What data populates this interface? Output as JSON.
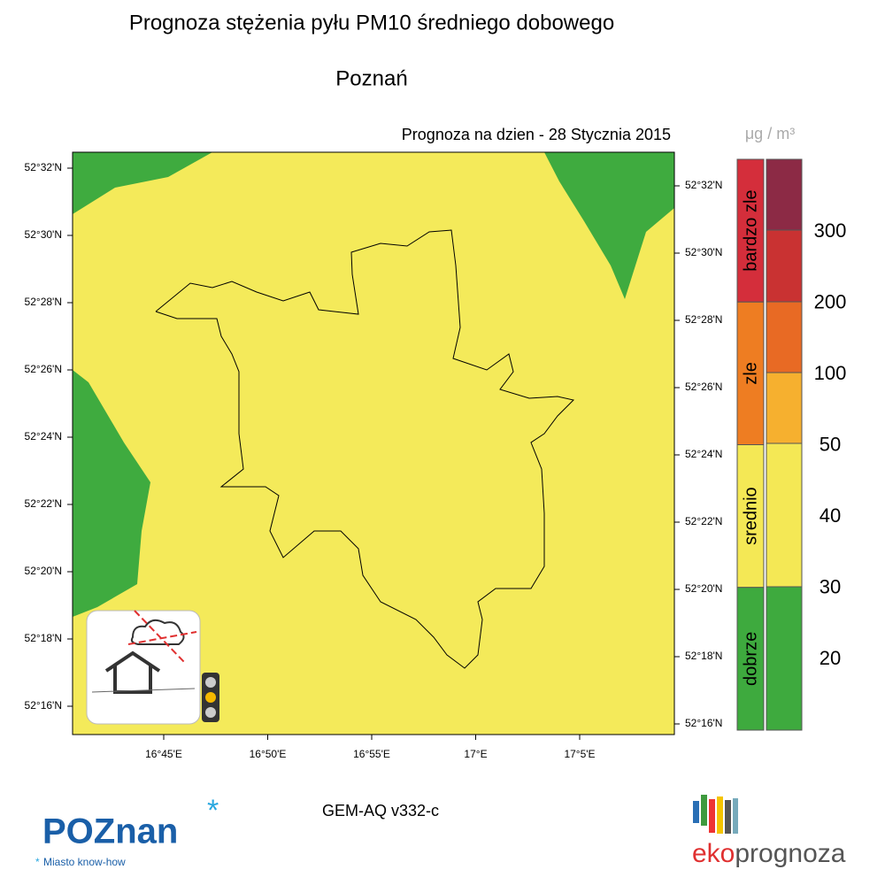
{
  "title": "Prognoza stężenia pyłu PM10 średniego dobowego",
  "subtitle": "Poznań",
  "forecast_date": "Prognoza na dzien -  28 Stycznia 2015",
  "map": {
    "lat_labels_left": [
      "52°32'N",
      "52°30'N",
      "52°28'N",
      "52°26'N",
      "52°24'N",
      "52°22'N",
      "52°20'N",
      "52°18'N",
      "52°16'N"
    ],
    "lat_labels_right": [
      "52°32'N",
      "52°30'N",
      "52°28'N",
      "52°26'N",
      "52°24'N",
      "52°22'N",
      "52°20'N",
      "52°18'N",
      "52°16'N"
    ],
    "lon_labels": [
      "16°45'E",
      "16°50'E",
      "16°55'E",
      "17°E",
      "17°5'E"
    ]
  },
  "legend": {
    "unit": "μg / m³",
    "categories": [
      {
        "name": "bardzo zle",
        "color": "#d42e3b"
      },
      {
        "name": "zle",
        "color": "#ee7d22"
      },
      {
        "name": "srednio",
        "color": "#f4e855"
      },
      {
        "name": "dobrze",
        "color": "#3eaa3e"
      }
    ],
    "level_colors": [
      "#8c2a45",
      "#c93232",
      "#e86a24",
      "#f6b02f",
      "#f4e855",
      "#f4e855",
      "#3eaa3e"
    ],
    "levels": [
      300,
      200,
      100,
      50,
      40,
      30,
      20
    ]
  },
  "model": "GEM-AQ v332-c",
  "logos": {
    "poznan": "POZnan",
    "poznan_tagline": "Miasto know-how",
    "eko": "eko",
    "prognoza": "prognoza"
  }
}
